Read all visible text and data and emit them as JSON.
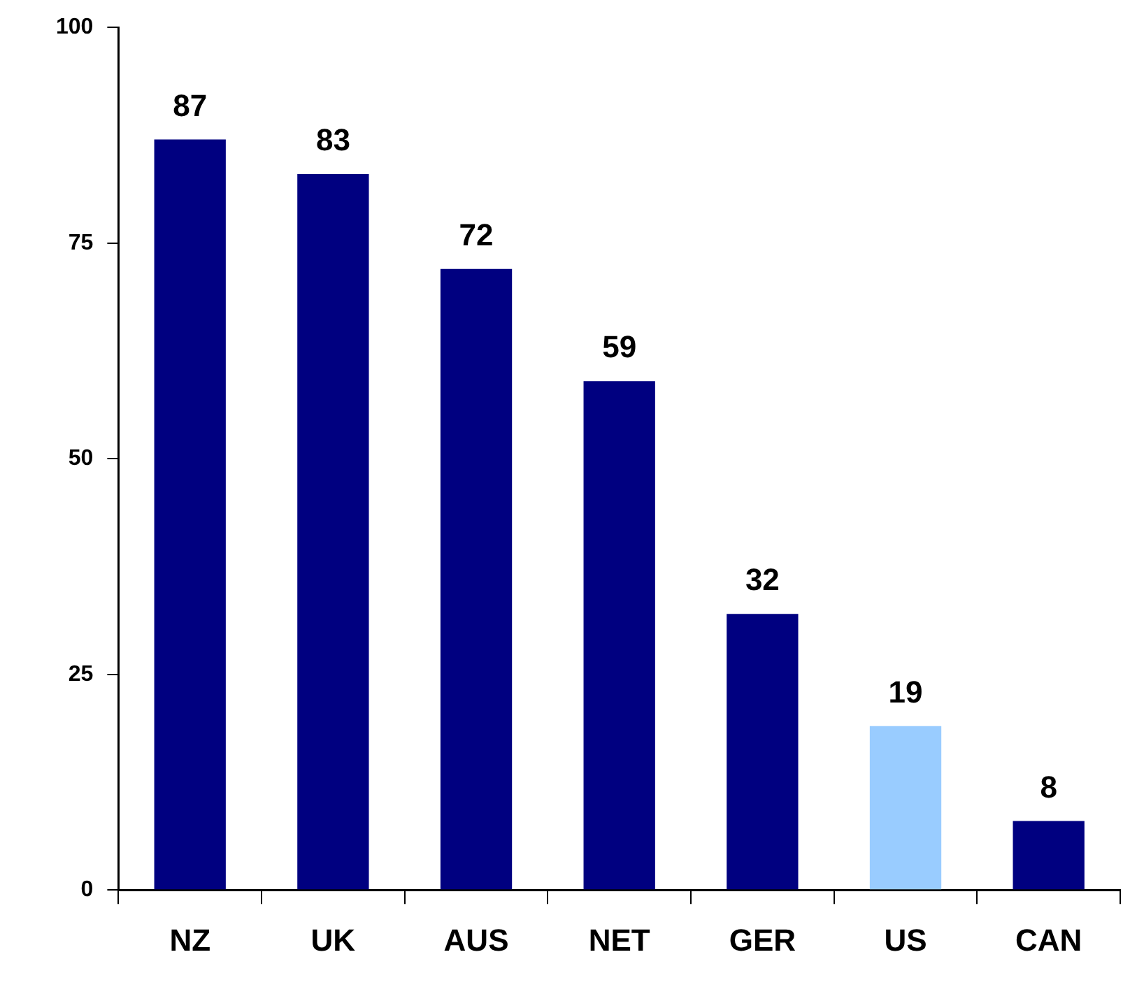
{
  "chart_data": {
    "type": "bar",
    "categories": [
      "NZ",
      "UK",
      "AUS",
      "NET",
      "GER",
      "US",
      "CAN"
    ],
    "values": [
      87,
      83,
      72,
      59,
      32,
      19,
      8
    ],
    "colors": [
      "#000080",
      "#000080",
      "#000080",
      "#000080",
      "#000080",
      "#99ccff",
      "#000080"
    ],
    "ylim": [
      0,
      100
    ],
    "yticks": [
      0,
      25,
      50,
      75,
      100
    ],
    "grid": false,
    "legend": false,
    "data_labels": true
  }
}
